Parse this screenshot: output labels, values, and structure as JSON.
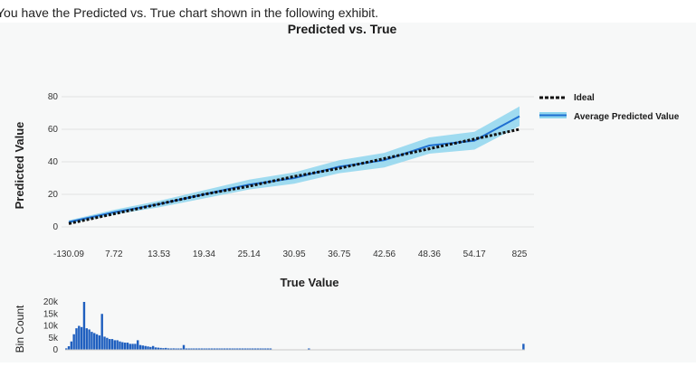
{
  "caption": "You have the Predicted vs. True chart shown in the following exhibit.",
  "chart_data": [
    {
      "type": "line",
      "title": "Predicted vs. True",
      "xlabel": "True Value",
      "ylabel": "Predicted Value",
      "x_tick_labels": [
        "-130.09",
        "7.72",
        "13.53",
        "19.34",
        "25.14",
        "30.95",
        "36.75",
        "42.56",
        "48.36",
        "54.17",
        "825"
      ],
      "y_ticks": [
        0,
        20,
        40,
        60,
        80
      ],
      "ylim": [
        0,
        80
      ],
      "grid": true,
      "legend_position": "top-right",
      "series": [
        {
          "name": "Ideal",
          "style": "dotted",
          "color": "#111111",
          "values": [
            2,
            8,
            14,
            20,
            25,
            31,
            36,
            42,
            48,
            54,
            60
          ]
        },
        {
          "name": "Average Predicted Value",
          "style": "solid",
          "color": "#1f6fd1",
          "band_color": "#8fd6ee",
          "values": [
            3,
            9,
            14,
            20,
            26,
            30,
            37,
            41,
            50,
            53,
            68
          ]
        }
      ]
    },
    {
      "type": "bar",
      "ylabel": "Bin Count",
      "y_tick_labels": [
        "0",
        "5k",
        "10k",
        "15k",
        "20k"
      ],
      "ylim": [
        0,
        20000
      ],
      "color": "#1f5fbf",
      "values": [
        600,
        1500,
        3500,
        6500,
        9000,
        10000,
        9500,
        20000,
        9000,
        8500,
        7500,
        7000,
        6500,
        6000,
        15000,
        5500,
        5000,
        4500,
        4500,
        4000,
        4000,
        3500,
        3200,
        3000,
        3000,
        2500,
        2500,
        2500,
        4000,
        2000,
        1800,
        1600,
        1400,
        1200,
        1600,
        1000,
        900,
        800,
        700,
        800,
        600,
        500,
        600,
        400,
        400,
        400,
        2000,
        400,
        300,
        300,
        300,
        300,
        200,
        300,
        200,
        200,
        200,
        200,
        200,
        200,
        200,
        300,
        200,
        200,
        200,
        200,
        200,
        200,
        200,
        200,
        200,
        200,
        200,
        200,
        200,
        200,
        200,
        200,
        200,
        200,
        200,
        0,
        0,
        0,
        0,
        0,
        0,
        0,
        0,
        0,
        0,
        0,
        0,
        0,
        0,
        300,
        0,
        0,
        0,
        0,
        0,
        0,
        0,
        0,
        0,
        0,
        0,
        0,
        0,
        0,
        0,
        0,
        0,
        0,
        0,
        0,
        0,
        0,
        0,
        0,
        0,
        0,
        0,
        0,
        0,
        0,
        0,
        0,
        0,
        0,
        0,
        0,
        0,
        0,
        0,
        0,
        0,
        0,
        0,
        0,
        0,
        0,
        0,
        0,
        0,
        0,
        0,
        0,
        0,
        0,
        0,
        0,
        0,
        0,
        0,
        0,
        0,
        0,
        0,
        0,
        0,
        0,
        0,
        0,
        0,
        0,
        0,
        0,
        0,
        0,
        0,
        0,
        0,
        0,
        0,
        0,
        0,
        0,
        0,
        2500
      ]
    }
  ]
}
